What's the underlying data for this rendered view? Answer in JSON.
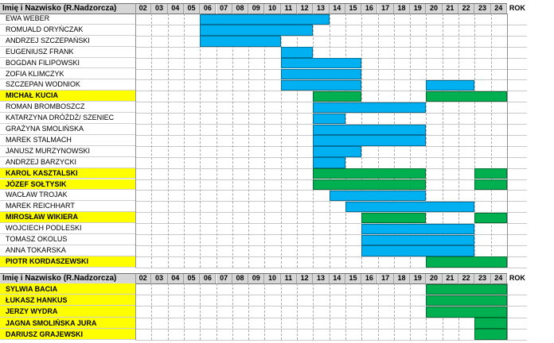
{
  "colors": {
    "blue": "#00b0f0",
    "green": "#00b050",
    "highlight": "#ffff00",
    "header": "#d6d6d6"
  },
  "table1": {
    "header_name": "Imię i Nazwisko (R.Nadzorcza)",
    "columns": [
      "02",
      "03",
      "04",
      "05",
      "06",
      "07",
      "08",
      "09",
      "10",
      "11",
      "12",
      "13",
      "14",
      "15",
      "16",
      "17",
      "18",
      "19",
      "20",
      "21",
      "22",
      "23",
      "24"
    ],
    "rok": "ROK",
    "rows": [
      {
        "name": "EWA WEBER",
        "highlight": false,
        "bars": [
          {
            "from": 6,
            "to": 13,
            "color": "blue"
          }
        ]
      },
      {
        "name": "ROMUALD ORYŃCZAK",
        "highlight": false,
        "bars": [
          {
            "from": 6,
            "to": 12,
            "color": "blue"
          }
        ]
      },
      {
        "name": "ANDRZEJ SZCZEPAŃSKI",
        "highlight": false,
        "bars": [
          {
            "from": 6,
            "to": 10,
            "color": "blue"
          }
        ]
      },
      {
        "name": "EUGENIUSZ FRANK",
        "highlight": false,
        "bars": [
          {
            "from": 11,
            "to": 12,
            "color": "blue"
          }
        ]
      },
      {
        "name": "BOGDAN FILIPOWSKI",
        "highlight": false,
        "bars": [
          {
            "from": 11,
            "to": 15,
            "color": "blue"
          }
        ]
      },
      {
        "name": "ZOFIA KLIMCZYK",
        "highlight": false,
        "bars": [
          {
            "from": 11,
            "to": 15,
            "color": "blue"
          }
        ]
      },
      {
        "name": "SZCZEPAN WODNIOK",
        "highlight": false,
        "bars": [
          {
            "from": 11,
            "to": 15,
            "color": "blue"
          },
          {
            "from": 20,
            "to": 22,
            "color": "blue"
          }
        ]
      },
      {
        "name": "MICHAŁ KUCIA",
        "highlight": true,
        "bars": [
          {
            "from": 13,
            "to": 15,
            "color": "green"
          },
          {
            "from": 20,
            "to": 24,
            "color": "green"
          }
        ]
      },
      {
        "name": "ROMAN BROMBOSZCZ",
        "highlight": false,
        "bars": [
          {
            "from": 13,
            "to": 19,
            "color": "blue"
          }
        ]
      },
      {
        "name": "KATARZYNA DRÓŻDŻ/ SZENIEC",
        "highlight": false,
        "bars": [
          {
            "from": 13,
            "to": 14,
            "color": "blue"
          }
        ]
      },
      {
        "name": "GRAŻYNA SMOLIŃSKA",
        "highlight": false,
        "bars": [
          {
            "from": 13,
            "to": 19,
            "color": "blue"
          }
        ]
      },
      {
        "name": "MAREK STALMACH",
        "highlight": false,
        "bars": [
          {
            "from": 13,
            "to": 19,
            "color": "blue"
          }
        ]
      },
      {
        "name": "JANUSZ MURZYNOWSKI",
        "highlight": false,
        "bars": [
          {
            "from": 13,
            "to": 15,
            "color": "blue"
          }
        ]
      },
      {
        "name": "ANDRZEJ BARZYCKI",
        "highlight": false,
        "bars": [
          {
            "from": 13,
            "to": 14,
            "color": "blue"
          }
        ]
      },
      {
        "name": "KAROL KASZTALSKI",
        "highlight": true,
        "bars": [
          {
            "from": 13,
            "to": 19,
            "color": "green"
          },
          {
            "from": 23,
            "to": 24,
            "color": "green"
          }
        ]
      },
      {
        "name": "JÓZEF SOŁTYSIK",
        "highlight": true,
        "bars": [
          {
            "from": 13,
            "to": 19,
            "color": "green"
          },
          {
            "from": 23,
            "to": 24,
            "color": "green"
          }
        ]
      },
      {
        "name": "WACŁAW TROJAK",
        "highlight": false,
        "bars": [
          {
            "from": 14,
            "to": 19,
            "color": "blue"
          }
        ]
      },
      {
        "name": "MAREK REICHHART",
        "highlight": false,
        "bars": [
          {
            "from": 15,
            "to": 22,
            "color": "blue"
          }
        ]
      },
      {
        "name": "MIROSŁAW WIKIERA",
        "highlight": true,
        "bars": [
          {
            "from": 16,
            "to": 19,
            "color": "green"
          },
          {
            "from": 23,
            "to": 24,
            "color": "green"
          }
        ]
      },
      {
        "name": "WOJCIECH PODLESKI",
        "highlight": false,
        "bars": [
          {
            "from": 16,
            "to": 22,
            "color": "blue"
          }
        ]
      },
      {
        "name": "TOMASZ OKOLUS",
        "highlight": false,
        "bars": [
          {
            "from": 16,
            "to": 22,
            "color": "blue"
          }
        ]
      },
      {
        "name": "ANNA TOKARSKA",
        "highlight": false,
        "bars": [
          {
            "from": 16,
            "to": 22,
            "color": "blue"
          }
        ]
      },
      {
        "name": "PIOTR KORDASZEWSKI",
        "highlight": true,
        "bars": [
          {
            "from": 20,
            "to": 24,
            "color": "green"
          }
        ]
      }
    ]
  },
  "table2": {
    "header_name": "Imię i Nazwisko (R.Nadzorcza)",
    "columns": [
      "02",
      "03",
      "04",
      "05",
      "06",
      "07",
      "08",
      "09",
      "10",
      "11",
      "12",
      "13",
      "14",
      "15",
      "16",
      "17",
      "18",
      "19",
      "20",
      "21",
      "22",
      "23",
      "24"
    ],
    "rok": "ROK",
    "rows": [
      {
        "name": "SYLWIA BACIA",
        "highlight": true,
        "bars": [
          {
            "from": 20,
            "to": 24,
            "color": "green"
          }
        ]
      },
      {
        "name": "ŁUKASZ HANKUS",
        "highlight": true,
        "bars": [
          {
            "from": 20,
            "to": 24,
            "color": "green"
          }
        ]
      },
      {
        "name": "JERZY WYDRA",
        "highlight": true,
        "bars": [
          {
            "from": 20,
            "to": 24,
            "color": "green"
          }
        ]
      },
      {
        "name": "JAGNA SMOLIŃSKA JURA",
        "highlight": true,
        "bars": [
          {
            "from": 23,
            "to": 24,
            "color": "green"
          }
        ]
      },
      {
        "name": "DARIUSZ GRAJEWSKI",
        "highlight": true,
        "bars": [
          {
            "from": 23,
            "to": 24,
            "color": "green"
          }
        ]
      }
    ]
  }
}
